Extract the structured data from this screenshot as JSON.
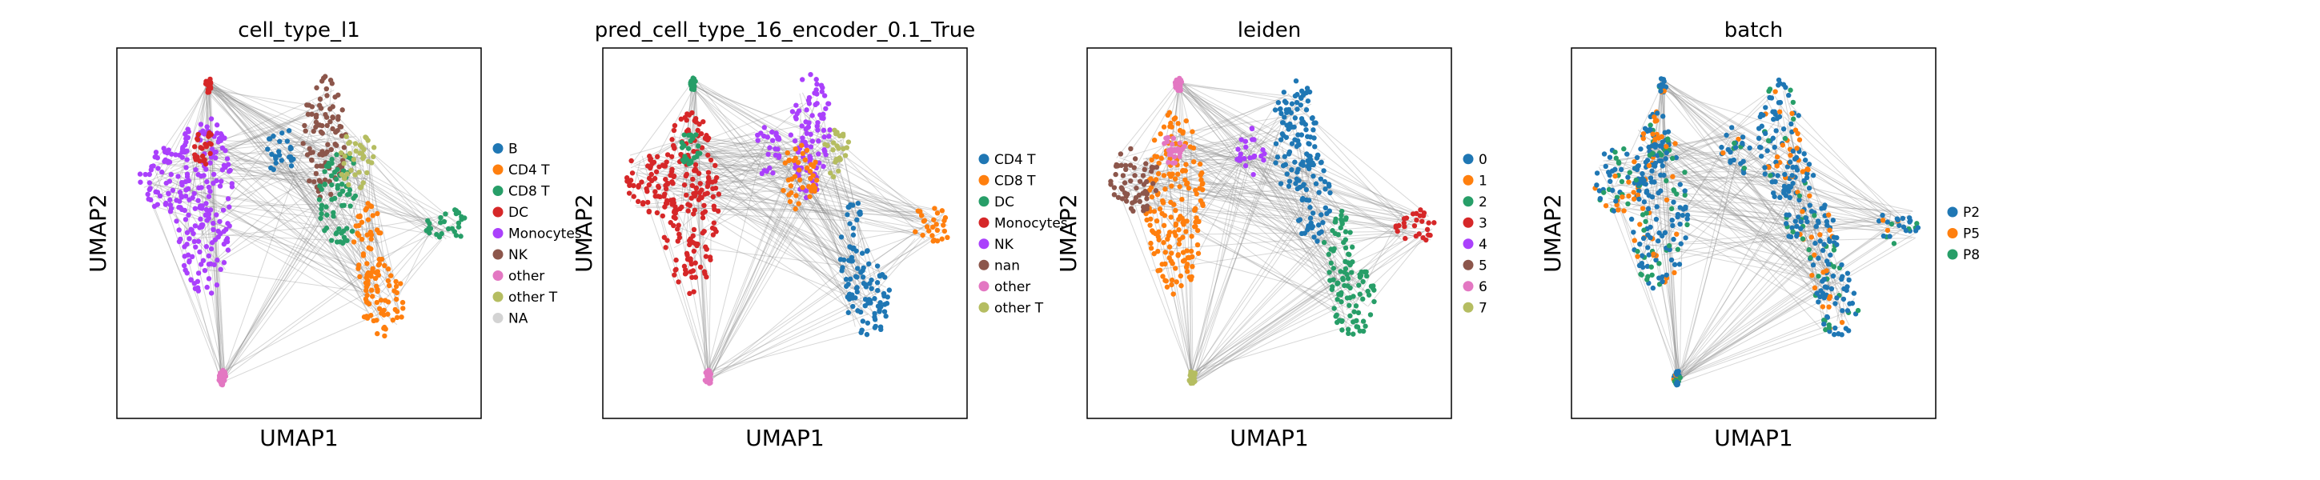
{
  "chart_data": [
    {
      "type": "scatter",
      "title": "cell_type_l1",
      "xlabel": "UMAP1",
      "ylabel": "UMAP2",
      "legend": [
        "B",
        "CD4 T",
        "CD8 T",
        "DC",
        "Monocytes",
        "NK",
        "other",
        "other T",
        "NA"
      ],
      "colors": [
        "#1f77b4",
        "#ff7f0e",
        "#279e68",
        "#d62728",
        "#aa40fc",
        "#8c564b",
        "#e377c2",
        "#b5bd61",
        "#d3d3d3"
      ],
      "clusters": [
        {
          "category": "Monocytes",
          "cx": 0.24,
          "cy": 0.42,
          "rx": 0.08,
          "ry": 0.25
        },
        {
          "category": "Monocytes",
          "cx": 0.13,
          "cy": 0.36,
          "rx": 0.07,
          "ry": 0.09
        },
        {
          "category": "DC",
          "cx": 0.24,
          "cy": 0.27,
          "rx": 0.03,
          "ry": 0.05
        },
        {
          "category": "DC",
          "cx": 0.25,
          "cy": 0.1,
          "rx": 0.01,
          "ry": 0.02
        },
        {
          "category": "B",
          "cx": 0.45,
          "cy": 0.28,
          "rx": 0.04,
          "ry": 0.07
        },
        {
          "category": "NK",
          "cx": 0.57,
          "cy": 0.24,
          "rx": 0.06,
          "ry": 0.17
        },
        {
          "category": "CD8 T",
          "cx": 0.61,
          "cy": 0.4,
          "rx": 0.06,
          "ry": 0.13
        },
        {
          "category": "other T",
          "cx": 0.66,
          "cy": 0.3,
          "rx": 0.05,
          "ry": 0.08
        },
        {
          "category": "CD4 T",
          "cx": 0.69,
          "cy": 0.55,
          "rx": 0.04,
          "ry": 0.14
        },
        {
          "category": "CD4 T",
          "cx": 0.73,
          "cy": 0.68,
          "rx": 0.06,
          "ry": 0.1
        },
        {
          "category": "CD8 T",
          "cx": 0.9,
          "cy": 0.48,
          "rx": 0.06,
          "ry": 0.05
        },
        {
          "category": "other",
          "cx": 0.29,
          "cy": 0.89,
          "rx": 0.01,
          "ry": 0.02
        }
      ]
    },
    {
      "type": "scatter",
      "title": "pred_cell_type_16_encoder_0.1_True",
      "xlabel": "UMAP1",
      "ylabel": "UMAP2",
      "legend": [
        "CD4 T",
        "CD8 T",
        "DC",
        "Monocytes",
        "NK",
        "nan",
        "other",
        "other T"
      ],
      "colors": [
        "#1f77b4",
        "#ff7f0e",
        "#279e68",
        "#d62728",
        "#aa40fc",
        "#8c564b",
        "#e377c2",
        "#b5bd61"
      ],
      "clusters": [
        {
          "category": "Monocytes",
          "cx": 0.24,
          "cy": 0.42,
          "rx": 0.08,
          "ry": 0.25
        },
        {
          "category": "Monocytes",
          "cx": 0.13,
          "cy": 0.36,
          "rx": 0.07,
          "ry": 0.09
        },
        {
          "category": "DC",
          "cx": 0.24,
          "cy": 0.27,
          "rx": 0.03,
          "ry": 0.05
        },
        {
          "category": "DC",
          "cx": 0.25,
          "cy": 0.1,
          "rx": 0.01,
          "ry": 0.02
        },
        {
          "category": "NK",
          "cx": 0.45,
          "cy": 0.28,
          "rx": 0.04,
          "ry": 0.07
        },
        {
          "category": "NK",
          "cx": 0.57,
          "cy": 0.24,
          "rx": 0.06,
          "ry": 0.17
        },
        {
          "category": "CD8 T",
          "cx": 0.54,
          "cy": 0.35,
          "rx": 0.05,
          "ry": 0.09
        },
        {
          "category": "other T",
          "cx": 0.64,
          "cy": 0.28,
          "rx": 0.04,
          "ry": 0.07
        },
        {
          "category": "CD4 T",
          "cx": 0.69,
          "cy": 0.55,
          "rx": 0.04,
          "ry": 0.14
        },
        {
          "category": "CD4 T",
          "cx": 0.73,
          "cy": 0.68,
          "rx": 0.06,
          "ry": 0.1
        },
        {
          "category": "CD8 T",
          "cx": 0.9,
          "cy": 0.48,
          "rx": 0.06,
          "ry": 0.05
        },
        {
          "category": "other",
          "cx": 0.29,
          "cy": 0.89,
          "rx": 0.01,
          "ry": 0.02
        }
      ]
    },
    {
      "type": "scatter",
      "title": "leiden",
      "xlabel": "UMAP1",
      "ylabel": "UMAP2",
      "legend": [
        "0",
        "1",
        "2",
        "3",
        "4",
        "5",
        "6",
        "7"
      ],
      "colors": [
        "#1f77b4",
        "#ff7f0e",
        "#279e68",
        "#d62728",
        "#aa40fc",
        "#8c564b",
        "#e377c2",
        "#b5bd61"
      ],
      "clusters": [
        {
          "category": "1",
          "cx": 0.24,
          "cy": 0.42,
          "rx": 0.08,
          "ry": 0.25
        },
        {
          "category": "5",
          "cx": 0.13,
          "cy": 0.36,
          "rx": 0.07,
          "ry": 0.09
        },
        {
          "category": "6",
          "cx": 0.24,
          "cy": 0.27,
          "rx": 0.03,
          "ry": 0.05
        },
        {
          "category": "6",
          "cx": 0.25,
          "cy": 0.1,
          "rx": 0.01,
          "ry": 0.02
        },
        {
          "category": "4",
          "cx": 0.45,
          "cy": 0.28,
          "rx": 0.04,
          "ry": 0.07
        },
        {
          "category": "0",
          "cx": 0.57,
          "cy": 0.24,
          "rx": 0.06,
          "ry": 0.17
        },
        {
          "category": "0",
          "cx": 0.62,
          "cy": 0.4,
          "rx": 0.05,
          "ry": 0.13
        },
        {
          "category": "2",
          "cx": 0.69,
          "cy": 0.55,
          "rx": 0.04,
          "ry": 0.14
        },
        {
          "category": "2",
          "cx": 0.73,
          "cy": 0.68,
          "rx": 0.06,
          "ry": 0.1
        },
        {
          "category": "3",
          "cx": 0.9,
          "cy": 0.48,
          "rx": 0.06,
          "ry": 0.05
        },
        {
          "category": "7",
          "cx": 0.29,
          "cy": 0.89,
          "rx": 0.01,
          "ry": 0.02
        }
      ]
    },
    {
      "type": "scatter",
      "title": "batch",
      "xlabel": "UMAP1",
      "ylabel": "UMAP2",
      "legend": [
        "P2",
        "P5",
        "P8"
      ],
      "colors": [
        "#1f77b4",
        "#ff7f0e",
        "#279e68"
      ],
      "clusters": [
        {
          "category": "P2",
          "cx": 0.24,
          "cy": 0.42,
          "rx": 0.08,
          "ry": 0.25
        },
        {
          "category": "P2",
          "cx": 0.13,
          "cy": 0.36,
          "rx": 0.07,
          "ry": 0.09
        },
        {
          "category": "P2",
          "cx": 0.24,
          "cy": 0.27,
          "rx": 0.03,
          "ry": 0.05
        },
        {
          "category": "P2",
          "cx": 0.25,
          "cy": 0.1,
          "rx": 0.01,
          "ry": 0.02
        },
        {
          "category": "P2",
          "cx": 0.45,
          "cy": 0.28,
          "rx": 0.04,
          "ry": 0.07
        },
        {
          "category": "P2",
          "cx": 0.57,
          "cy": 0.24,
          "rx": 0.06,
          "ry": 0.17
        },
        {
          "category": "P2",
          "cx": 0.62,
          "cy": 0.4,
          "rx": 0.05,
          "ry": 0.13
        },
        {
          "category": "P2",
          "cx": 0.69,
          "cy": 0.55,
          "rx": 0.04,
          "ry": 0.14
        },
        {
          "category": "P2",
          "cx": 0.73,
          "cy": 0.68,
          "rx": 0.06,
          "ry": 0.1
        },
        {
          "category": "P2",
          "cx": 0.9,
          "cy": 0.48,
          "rx": 0.06,
          "ry": 0.05
        },
        {
          "category": "P5",
          "cx": 0.29,
          "cy": 0.89,
          "rx": 0.01,
          "ry": 0.02
        }
      ],
      "mixed_colors": [
        "#1f77b4",
        "#ff7f0e",
        "#1f77b4",
        "#1f77b4",
        "#279e68"
      ]
    }
  ]
}
